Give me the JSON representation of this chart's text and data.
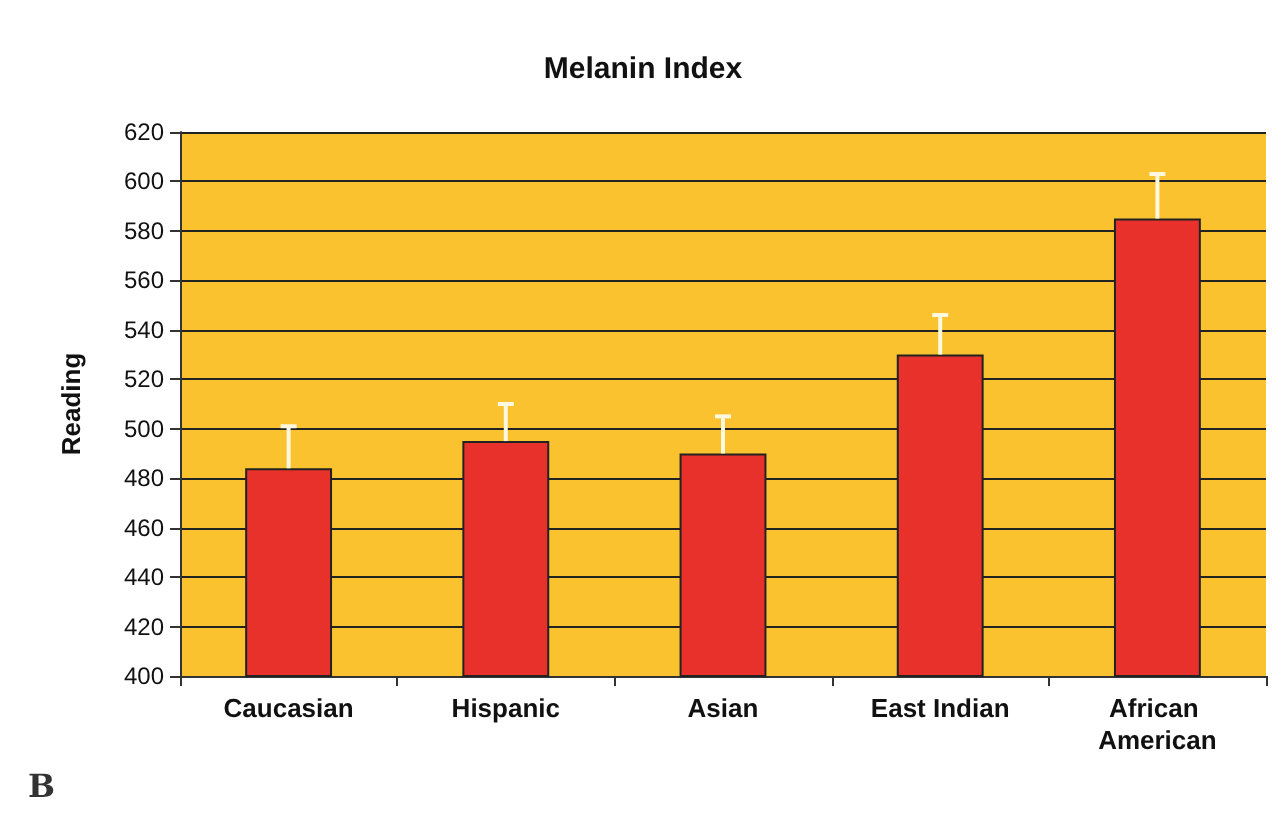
{
  "chart_data": {
    "type": "bar",
    "title": "Melanin Index",
    "ylabel": "Reading",
    "categories": [
      "Caucasian",
      "Hispanic",
      "Asian",
      "East Indian",
      "African American"
    ],
    "values": [
      484,
      495,
      490,
      530,
      585
    ],
    "errors": [
      [
        484,
        501
      ],
      [
        495,
        510
      ],
      [
        490,
        505
      ],
      [
        530,
        546
      ],
      [
        585,
        603
      ]
    ],
    "color": "#e8312a",
    "ylim": [
      400,
      620
    ],
    "yticks": [
      400,
      420,
      440,
      460,
      480,
      500,
      520,
      540,
      560,
      580,
      600,
      620
    ],
    "grid": "y",
    "annotations": [
      "B"
    ]
  }
}
